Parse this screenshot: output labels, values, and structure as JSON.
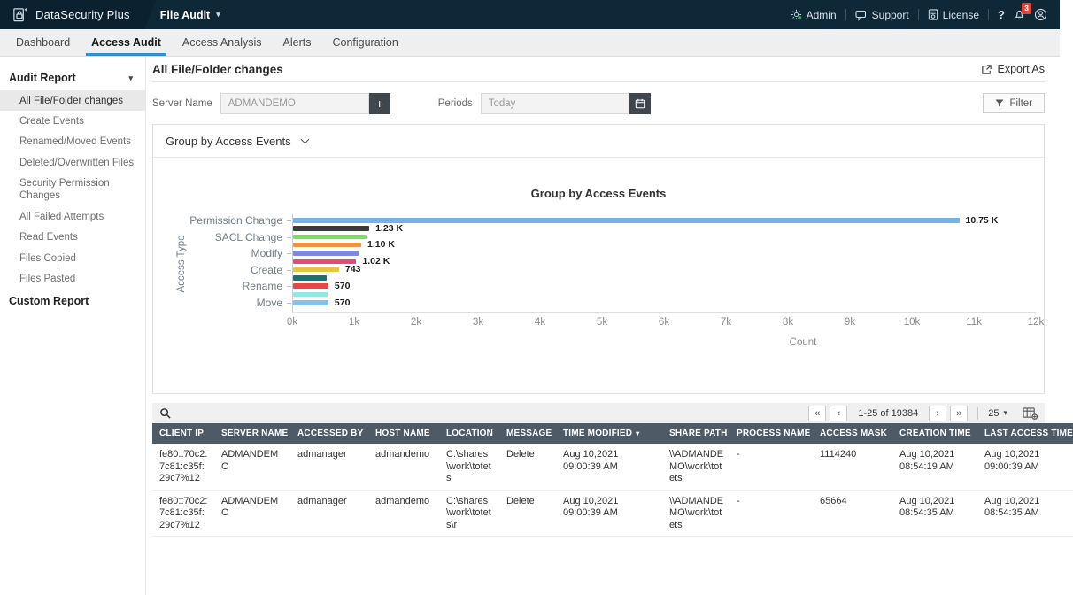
{
  "colors": {
    "topbar_bg": "#0f2838",
    "accent_blue": "#2e8fd4",
    "badge_red": "#e5433b",
    "table_header_bg": "#4e5b66",
    "dark_button_bg": "#3f474c"
  },
  "icons": {
    "caret_down": "▾",
    "plus": "+",
    "first": "«",
    "prev": "‹",
    "next": "›",
    "last": "»"
  },
  "topbar": {
    "brand": "DataSecurity Plus",
    "module": "File Audit",
    "admin": "Admin",
    "support": "Support",
    "license": "License",
    "help": "?",
    "badge": "3"
  },
  "nav": {
    "tabs": [
      {
        "label": "Dashboard",
        "active": false
      },
      {
        "label": "Access Audit",
        "active": true
      },
      {
        "label": "Access Analysis",
        "active": false
      },
      {
        "label": "Alerts",
        "active": false
      },
      {
        "label": "Configuration",
        "active": false
      }
    ]
  },
  "sidebar": {
    "section_audit_report": "Audit Report",
    "section_custom_report": "Custom Report",
    "selected_index": 0,
    "items": [
      "All File/Folder changes",
      "Create Events",
      "Renamed/Moved Events",
      "Deleted/Overwritten Files",
      "Security Permission Changes",
      "All Failed Attempts",
      "Read Events",
      "Files Copied",
      "Files Pasted"
    ]
  },
  "main": {
    "title": "All File/Folder changes",
    "export_label": "Export As",
    "chart_panel_header": "Group by Access Events",
    "filters": {
      "server_name_label": "Server Name",
      "server_name_value": "ADMANDEMO",
      "periods_label": "Periods",
      "periods_value": "Today",
      "filter_button": "Filter"
    }
  },
  "chart_data": {
    "type": "bar",
    "orientation": "horizontal",
    "title": "Group by Access Events",
    "xlabel": "Count",
    "ylabel": "Access Type",
    "xlim": [
      0,
      12000
    ],
    "x_ticks": [
      "0k",
      "1k",
      "2k",
      "3k",
      "4k",
      "5k",
      "6k",
      "7k",
      "8k",
      "9k",
      "10k",
      "11k",
      "12k"
    ],
    "legend": "none",
    "bars": [
      {
        "label": "Permission Change",
        "value": 10750,
        "display": "10.75 K",
        "color": "#74b3e8"
      },
      {
        "label": "",
        "value": 1230,
        "display": "1.23 K",
        "color": "#3b3b3b"
      },
      {
        "label": "SACL Change",
        "value": 1180,
        "display": "",
        "color": "#7ce05f"
      },
      {
        "label": "",
        "value": 1100,
        "display": "1.10 K",
        "color": "#f0923f"
      },
      {
        "label": "Modify",
        "value": 1060,
        "display": "",
        "color": "#7d88e0"
      },
      {
        "label": "",
        "value": 1020,
        "display": "1.02 K",
        "color": "#ea4a71"
      },
      {
        "label": "Create",
        "value": 743,
        "display": "743",
        "color": "#e3c83b"
      },
      {
        "label": "",
        "value": 545,
        "display": "",
        "color": "#20706e"
      },
      {
        "label": "Rename",
        "value": 570,
        "display": "570",
        "color": "#ea4545"
      },
      {
        "label": "",
        "value": 555,
        "display": "",
        "color": "#90e8e0"
      },
      {
        "label": "Move",
        "value": 570,
        "display": "570",
        "color": "#84c2ee"
      }
    ]
  },
  "table": {
    "pagination": {
      "range": "1-25 of 19384",
      "page_size": "25"
    },
    "sorted_column": "TIME MODIFIED",
    "columns": [
      "CLIENT IP",
      "SERVER NAME",
      "ACCESSED BY",
      "HOST NAME",
      "LOCATION",
      "MESSAGE",
      "TIME MODIFIED",
      "SHARE PATH",
      "PROCESS NAME",
      "ACCESS MASK",
      "CREATION TIME",
      "LAST ACCESS TIME"
    ],
    "rows": [
      [
        "fe80::70c2:7c81:c35f:29c7%12",
        "ADMANDEMO",
        "admanager",
        "admandemo",
        "C:\\shares\\work\\totets",
        "Delete",
        "Aug 10,2021 09:00:39 AM",
        "\\\\ADMANDEMO\\work\\totets",
        "-",
        "1114240",
        "Aug 10,2021 08:54:19 AM",
        "Aug 10,2021 09:00:39 AM"
      ],
      [
        "fe80::70c2:7c81:c35f:29c7%12",
        "ADMANDEMO",
        "admanager",
        "admandemo",
        "C:\\shares\\work\\totets\\r",
        "Delete",
        "Aug 10,2021 09:00:39 AM",
        "\\\\ADMANDEMO\\work\\totets",
        "-",
        "65664",
        "Aug 10,2021 08:54:35 AM",
        "Aug 10,2021 08:54:35 AM"
      ]
    ]
  }
}
